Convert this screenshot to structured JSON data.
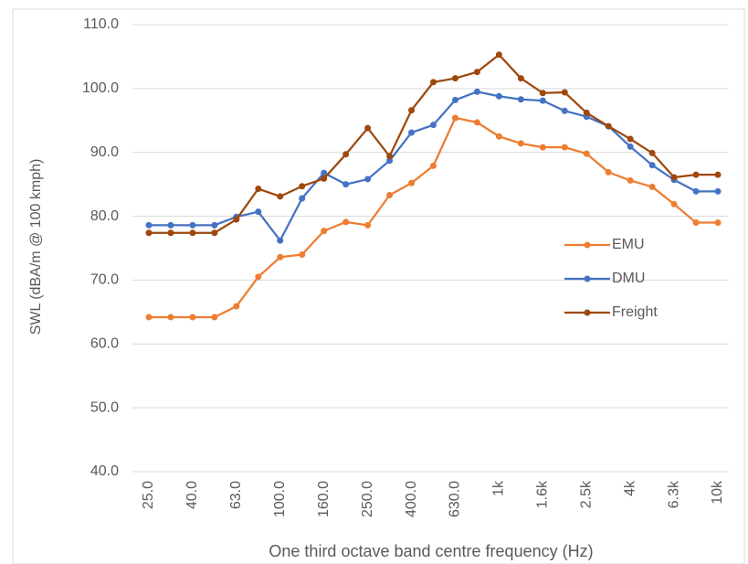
{
  "chart_data": {
    "type": "line",
    "x_label": "One third octave band centre frequency (Hz)",
    "y_label": "SWL (dBA/m @ 100 kmph)",
    "categories": [
      "25.0",
      null,
      "40.0",
      null,
      "63.0",
      null,
      "100.0",
      null,
      "160.0",
      null,
      "250.0",
      null,
      "400.0",
      null,
      "630.0",
      null,
      "1k",
      null,
      "1.6k",
      null,
      "2.5k",
      null,
      "4k",
      null,
      "6.3k",
      null,
      "10k"
    ],
    "series": [
      {
        "name": "EMU",
        "color": "#ed7d31",
        "values": [
          64.2,
          64.2,
          64.2,
          64.2,
          65.9,
          70.5,
          73.6,
          74.0,
          77.7,
          79.1,
          78.6,
          83.3,
          85.2,
          87.9,
          95.4,
          94.7,
          92.5,
          91.4,
          90.8,
          90.8,
          89.8,
          86.9,
          85.6,
          84.6,
          81.9,
          79.0,
          79.0
        ]
      },
      {
        "name": "DMU",
        "color": "#4472c4",
        "values": [
          78.6,
          78.6,
          78.6,
          78.6,
          79.9,
          80.7,
          76.2,
          82.8,
          86.8,
          85.0,
          85.8,
          88.7,
          93.1,
          94.3,
          98.2,
          99.5,
          98.8,
          98.3,
          98.1,
          96.5,
          95.6,
          94.1,
          90.9,
          88.0,
          85.7,
          83.9,
          83.9
        ]
      },
      {
        "name": "Freight",
        "color": "#9e480e",
        "values": [
          77.4,
          77.4,
          77.4,
          77.4,
          79.5,
          84.3,
          83.1,
          84.7,
          85.9,
          89.7,
          93.8,
          89.4,
          96.6,
          101.0,
          101.6,
          102.6,
          105.3,
          101.6,
          99.3,
          99.4,
          96.2,
          94.1,
          92.1,
          89.9,
          86.1,
          86.5,
          86.5
        ]
      }
    ],
    "ylim": [
      40,
      110
    ],
    "yticks": [
      {
        "value": 40,
        "label": "40.0"
      },
      {
        "value": 50,
        "label": "50.0"
      },
      {
        "value": 60,
        "label": "60.0"
      },
      {
        "value": 70,
        "label": "70.0"
      },
      {
        "value": 80,
        "label": "80.0"
      },
      {
        "value": 90,
        "label": "90.0"
      },
      {
        "value": 100,
        "label": "100.0"
      },
      {
        "value": 110,
        "label": "110.0"
      }
    ],
    "grid": true,
    "legend": "right"
  }
}
